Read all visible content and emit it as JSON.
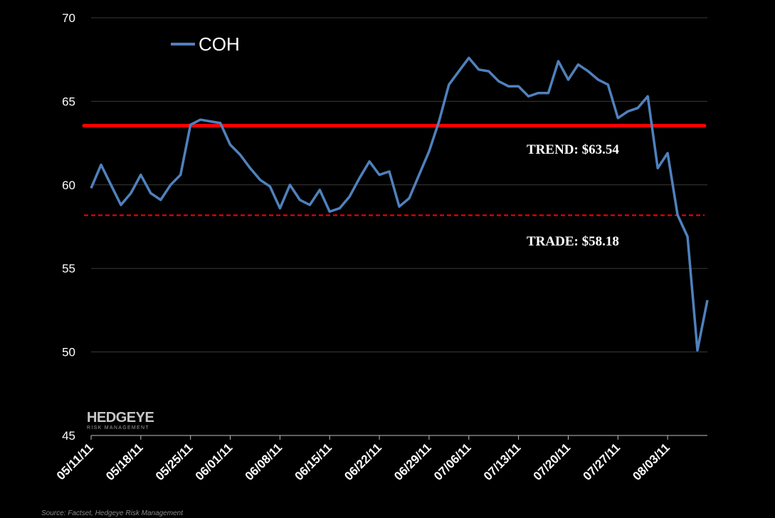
{
  "chart_data": {
    "type": "line",
    "title": "",
    "xlabel": "",
    "ylabel": "",
    "ylim": [
      45,
      70
    ],
    "yticks": [
      45,
      50,
      55,
      60,
      65,
      70
    ],
    "grid": "horizontal",
    "legend_position": "top-left",
    "x_tick_labels": [
      "05/11/11",
      "05/18/11",
      "05/25/11",
      "06/01/11",
      "06/08/11",
      "06/15/11",
      "06/22/11",
      "06/29/11",
      "07/06/11",
      "07/13/11",
      "07/20/11",
      "07/27/11",
      "08/03/11"
    ],
    "x": [
      "05/11/11",
      "05/12/11",
      "05/13/11",
      "05/16/11",
      "05/17/11",
      "05/18/11",
      "05/19/11",
      "05/20/11",
      "05/23/11",
      "05/24/11",
      "05/25/11",
      "05/26/11",
      "05/27/11",
      "05/31/11",
      "06/01/11",
      "06/02/11",
      "06/03/11",
      "06/06/11",
      "06/07/11",
      "06/08/11",
      "06/09/11",
      "06/10/11",
      "06/13/11",
      "06/14/11",
      "06/15/11",
      "06/16/11",
      "06/17/11",
      "06/20/11",
      "06/21/11",
      "06/22/11",
      "06/23/11",
      "06/24/11",
      "06/27/11",
      "06/28/11",
      "06/29/11",
      "06/30/11",
      "07/01/11",
      "07/05/11",
      "07/06/11",
      "07/07/11",
      "07/08/11",
      "07/11/11",
      "07/12/11",
      "07/13/11",
      "07/14/11",
      "07/15/11",
      "07/18/11",
      "07/19/11",
      "07/20/11",
      "07/21/11",
      "07/22/11",
      "07/25/11",
      "07/26/11",
      "07/27/11",
      "07/28/11",
      "07/29/11",
      "08/01/11",
      "08/02/11",
      "08/03/11",
      "08/04/11",
      "08/05/11",
      "08/08/11",
      "08/09/11"
    ],
    "series": [
      {
        "name": "COH",
        "color": "#4f81bd",
        "values": [
          59.8,
          61.2,
          60.0,
          58.8,
          59.5,
          60.6,
          59.5,
          59.1,
          60.0,
          60.6,
          63.6,
          63.9,
          63.8,
          63.7,
          62.4,
          61.8,
          61.0,
          60.3,
          59.9,
          58.6,
          60.0,
          59.1,
          58.8,
          59.7,
          58.4,
          58.6,
          59.3,
          60.4,
          61.4,
          60.6,
          60.8,
          58.7,
          59.2,
          60.6,
          62.0,
          63.8,
          66.0,
          66.8,
          67.6,
          66.9,
          66.8,
          66.2,
          65.9,
          65.9,
          65.3,
          65.5,
          65.5,
          67.4,
          66.3,
          67.2,
          66.8,
          66.3,
          66.0,
          64.0,
          64.4,
          64.6,
          65.3,
          61.0,
          61.9,
          58.2,
          56.9,
          50.1,
          53.1
        ]
      }
    ],
    "reference_lines": [
      {
        "name": "TREND",
        "value": 63.54,
        "label": "TREND: $63.54",
        "color": "#ff0000",
        "style": "solid"
      },
      {
        "name": "TRADE",
        "value": 58.18,
        "label": "TRADE: $58.18",
        "color": "#ff0000",
        "style": "dashed"
      }
    ]
  },
  "logo": {
    "main": "HEDGEYE",
    "sub": "RISK MANAGEMENT"
  },
  "source": "Source: Factset, Hedgeye Risk Management"
}
